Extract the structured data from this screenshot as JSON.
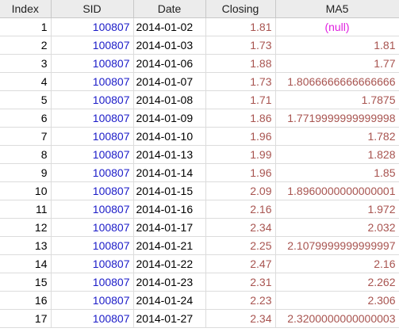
{
  "table": {
    "headers": {
      "index": "Index",
      "sid": "SID",
      "date": "Date",
      "closing": "Closing",
      "ma5": "MA5"
    },
    "null_label": "(null)",
    "rows": [
      {
        "index": "1",
        "sid": "100807",
        "date": "2014-01-02",
        "closing": "1.81",
        "ma5": null
      },
      {
        "index": "2",
        "sid": "100807",
        "date": "2014-01-03",
        "closing": "1.73",
        "ma5": "1.81"
      },
      {
        "index": "3",
        "sid": "100807",
        "date": "2014-01-06",
        "closing": "1.88",
        "ma5": "1.77"
      },
      {
        "index": "4",
        "sid": "100807",
        "date": "2014-01-07",
        "closing": "1.73",
        "ma5": "1.8066666666666666"
      },
      {
        "index": "5",
        "sid": "100807",
        "date": "2014-01-08",
        "closing": "1.71",
        "ma5": "1.7875"
      },
      {
        "index": "6",
        "sid": "100807",
        "date": "2014-01-09",
        "closing": "1.86",
        "ma5": "1.7719999999999998"
      },
      {
        "index": "7",
        "sid": "100807",
        "date": "2014-01-10",
        "closing": "1.96",
        "ma5": "1.782"
      },
      {
        "index": "8",
        "sid": "100807",
        "date": "2014-01-13",
        "closing": "1.99",
        "ma5": "1.828"
      },
      {
        "index": "9",
        "sid": "100807",
        "date": "2014-01-14",
        "closing": "1.96",
        "ma5": "1.85"
      },
      {
        "index": "10",
        "sid": "100807",
        "date": "2014-01-15",
        "closing": "2.09",
        "ma5": "1.8960000000000001"
      },
      {
        "index": "11",
        "sid": "100807",
        "date": "2014-01-16",
        "closing": "2.16",
        "ma5": "1.972"
      },
      {
        "index": "12",
        "sid": "100807",
        "date": "2014-01-17",
        "closing": "2.34",
        "ma5": "2.032"
      },
      {
        "index": "13",
        "sid": "100807",
        "date": "2014-01-21",
        "closing": "2.25",
        "ma5": "2.1079999999999997"
      },
      {
        "index": "14",
        "sid": "100807",
        "date": "2014-01-22",
        "closing": "2.47",
        "ma5": "2.16"
      },
      {
        "index": "15",
        "sid": "100807",
        "date": "2014-01-23",
        "closing": "2.31",
        "ma5": "2.262"
      },
      {
        "index": "16",
        "sid": "100807",
        "date": "2014-01-24",
        "closing": "2.23",
        "ma5": "2.306"
      },
      {
        "index": "17",
        "sid": "100807",
        "date": "2014-01-27",
        "closing": "2.34",
        "ma5": "2.3200000000000003"
      }
    ]
  },
  "colors": {
    "header_bg": "#ececec",
    "sid_text": "#1c1cc8",
    "numeric_text": "#a85450",
    "null_text": "#e020e0"
  }
}
